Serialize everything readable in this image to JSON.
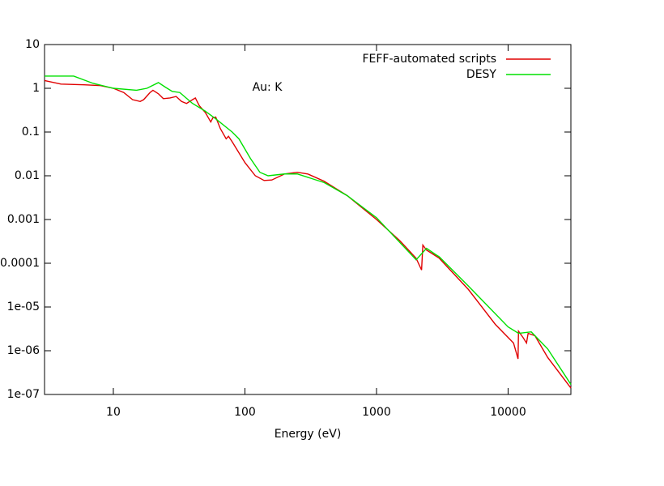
{
  "chart_data": {
    "type": "line",
    "annotation": "Au: K",
    "x_label": "Energy (eV)",
    "log_x": true,
    "log_y": true,
    "xlim": [
      3,
      30000
    ],
    "ylim": [
      1e-07,
      10
    ],
    "xticks": [
      10,
      100,
      1000,
      10000
    ],
    "yticks": [
      10,
      1,
      0.1,
      0.01,
      0.001,
      0.0001,
      {
        "value": 1e-05,
        "label": "1e-05"
      },
      {
        "value": 1e-06,
        "label": "1e-06"
      },
      {
        "value": 1e-07,
        "label": "1e-07"
      }
    ],
    "legend": "top-right",
    "series": [
      {
        "name": "FEFF-automated scripts",
        "color": "#e00000",
        "x": [
          3,
          4,
          6,
          8,
          10,
          12,
          14,
          16,
          17,
          19,
          20,
          22,
          24,
          27,
          30,
          33,
          36,
          40,
          42,
          45,
          50,
          55,
          57,
          60,
          65,
          72,
          75,
          80,
          100,
          120,
          140,
          160,
          200,
          250,
          300,
          400,
          600,
          1000,
          1500,
          2000,
          2200,
          2250,
          2400,
          2700,
          3000,
          5000,
          8000,
          11000,
          11900,
          12000,
          13000,
          13800,
          14200,
          16000,
          20000,
          30000
        ],
        "values": [
          1.5,
          1.25,
          1.2,
          1.15,
          1.0,
          0.8,
          0.55,
          0.5,
          0.55,
          0.8,
          0.9,
          0.75,
          0.58,
          0.6,
          0.65,
          0.5,
          0.45,
          0.55,
          0.6,
          0.4,
          0.28,
          0.17,
          0.21,
          0.22,
          0.12,
          0.07,
          0.08,
          0.06,
          0.02,
          0.01,
          0.0078,
          0.008,
          0.011,
          0.012,
          0.011,
          0.0075,
          0.0035,
          0.001,
          0.00033,
          0.00013,
          7e-05,
          0.00026,
          0.0002,
          0.00016,
          0.00013,
          2.5e-05,
          4e-06,
          1.5e-06,
          6.5e-07,
          2.8e-06,
          2e-06,
          1.5e-06,
          2.5e-06,
          2.2e-06,
          7e-07,
          1.4e-07
        ]
      },
      {
        "name": "DESY",
        "color": "#00e000",
        "x": [
          3,
          5,
          7,
          10,
          15,
          18,
          22,
          25,
          28,
          32,
          40,
          50,
          60,
          80,
          90,
          110,
          130,
          150,
          200,
          250,
          400,
          600,
          1000,
          2000,
          2400,
          2800,
          3000,
          5000,
          10000,
          12000,
          15000,
          20000,
          30000
        ],
        "values": [
          1.9,
          1.9,
          1.3,
          1.0,
          0.9,
          1.0,
          1.35,
          1.05,
          0.85,
          0.8,
          0.45,
          0.3,
          0.2,
          0.1,
          0.07,
          0.025,
          0.012,
          0.01,
          0.011,
          0.011,
          0.007,
          0.0035,
          0.0011,
          0.00012,
          0.00022,
          0.00016,
          0.00014,
          3e-05,
          3.5e-06,
          2.5e-06,
          2.7e-06,
          1.1e-06,
          1.7e-07
        ]
      }
    ]
  }
}
